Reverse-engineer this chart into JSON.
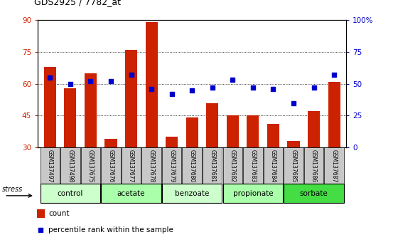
{
  "title": "GDS2925 / 7782_at",
  "samples": [
    "GSM137497",
    "GSM137498",
    "GSM137675",
    "GSM137676",
    "GSM137677",
    "GSM137678",
    "GSM137679",
    "GSM137680",
    "GSM137681",
    "GSM137682",
    "GSM137683",
    "GSM137684",
    "GSM137685",
    "GSM137686",
    "GSM137687"
  ],
  "bar_values": [
    68,
    58,
    65,
    34,
    76,
    89,
    35,
    44,
    51,
    45,
    45,
    41,
    33,
    47,
    61
  ],
  "pct_values": [
    55,
    50,
    52,
    52,
    57,
    46,
    42,
    45,
    47,
    53,
    47,
    46,
    35,
    47,
    57
  ],
  "bar_color": "#cc2200",
  "pct_color": "#0000cc",
  "ylim_left": [
    30,
    90
  ],
  "ylim_right": [
    0,
    100
  ],
  "yticks_left": [
    30,
    45,
    60,
    75,
    90
  ],
  "yticks_right": [
    0,
    25,
    50,
    75,
    100
  ],
  "ytick_labels_right": [
    "0",
    "25",
    "50",
    "75",
    "100%"
  ],
  "groups": [
    {
      "label": "control",
      "indices": [
        0,
        1,
        2
      ],
      "color": "#ccffcc"
    },
    {
      "label": "acetate",
      "indices": [
        3,
        4,
        5
      ],
      "color": "#aaffaa"
    },
    {
      "label": "benzoate",
      "indices": [
        6,
        7,
        8
      ],
      "color": "#ccffcc"
    },
    {
      "label": "propionate",
      "indices": [
        9,
        10,
        11
      ],
      "color": "#aaffaa"
    },
    {
      "label": "sorbate",
      "indices": [
        12,
        13,
        14
      ],
      "color": "#44dd44"
    }
  ],
  "stress_label": "stress",
  "legend_bar_label": "count",
  "legend_pct_label": "percentile rank within the sample",
  "bg_color": "#ffffff",
  "tick_color_left": "#cc2200",
  "tick_color_right": "#0000cc",
  "sample_box_color": "#c8c8c8",
  "stress_box_color": "#c8c8c8"
}
